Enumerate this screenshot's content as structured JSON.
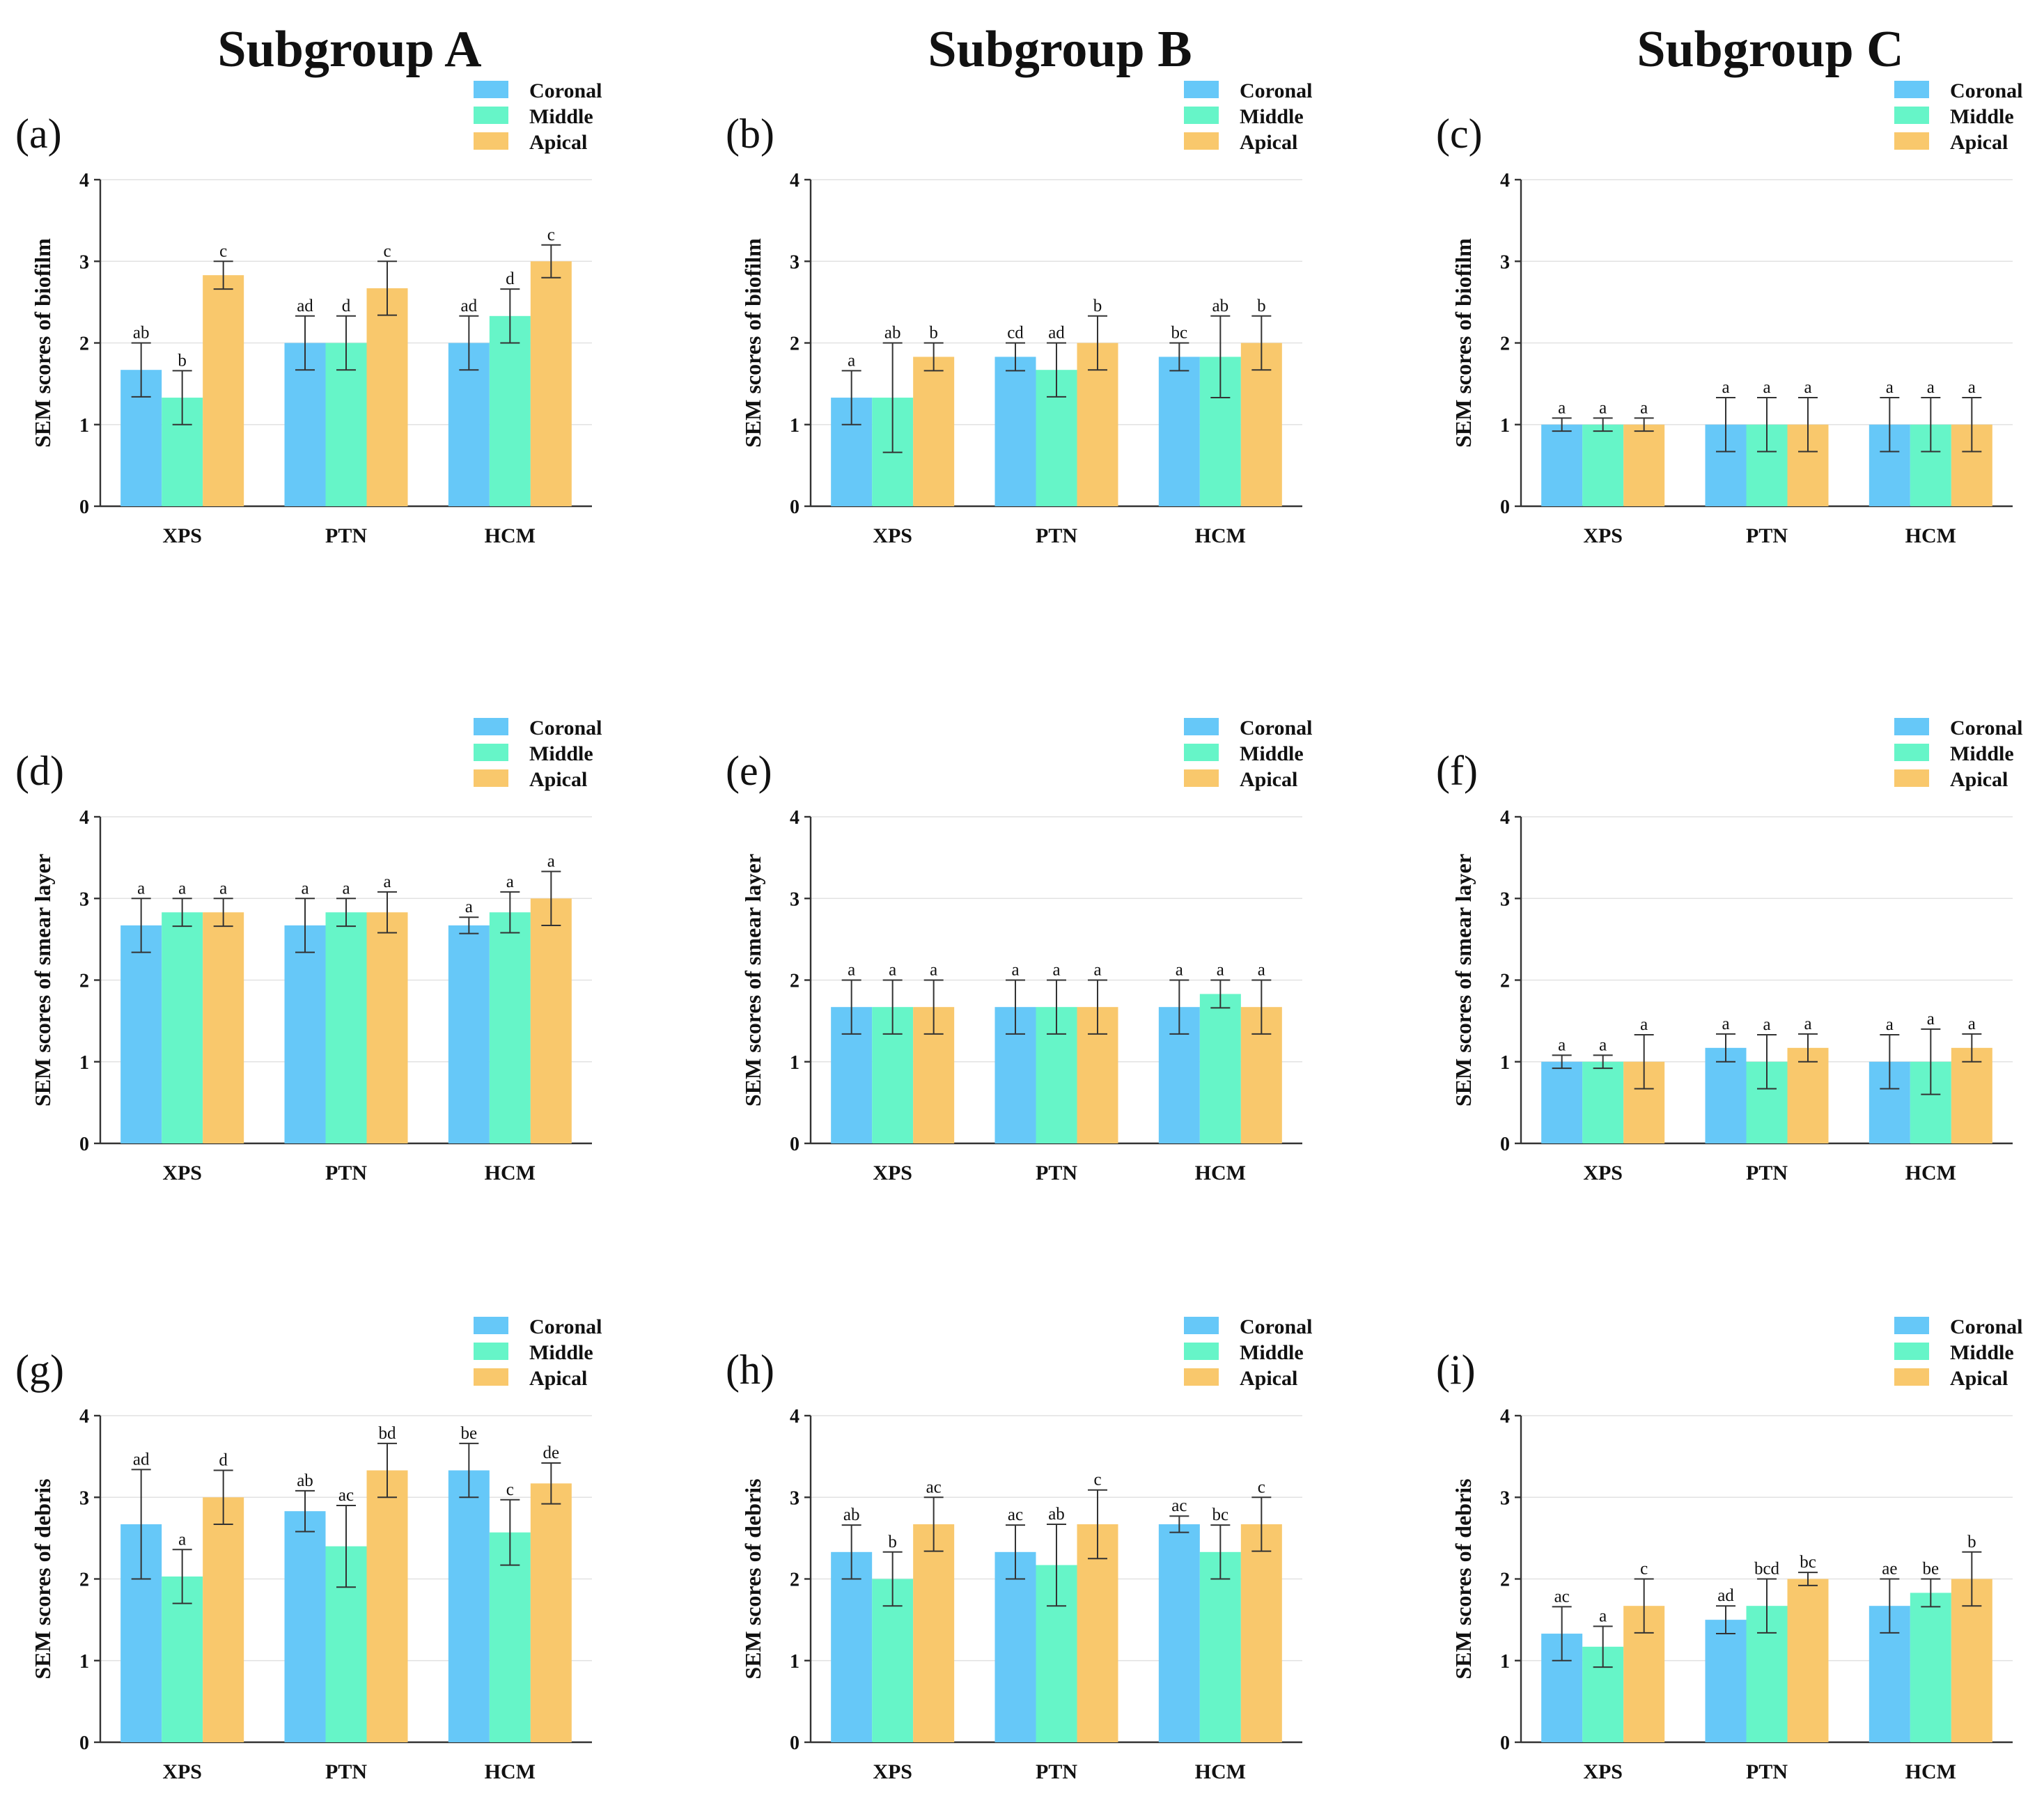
{
  "column_titles": [
    "Subgroup A",
    "Subgroup B",
    "Subgroup C"
  ],
  "legend": [
    {
      "name": "Coronal",
      "color": "#66c8f8"
    },
    {
      "name": "Middle",
      "color": "#66f5c8"
    },
    {
      "name": "Apical",
      "color": "#f9c86c"
    }
  ],
  "chart_data": [
    {
      "id": "a",
      "label": "(a)",
      "type": "bar",
      "subgroup": "Subgroup A",
      "ylabel": "SEM scores of biofilm",
      "ylim": [
        0,
        4
      ],
      "yticks": [
        0,
        1,
        2,
        3,
        4
      ],
      "grid": true,
      "categories": [
        "XPS",
        "PTN",
        "HCM"
      ],
      "series": [
        {
          "name": "Coronal",
          "values": [
            1.67,
            2.0,
            2.0
          ],
          "errors": [
            0.33,
            0.33,
            0.33
          ],
          "letters": [
            "ab",
            "ad",
            "ad"
          ]
        },
        {
          "name": "Middle",
          "values": [
            1.33,
            2.0,
            2.33
          ],
          "errors": [
            0.33,
            0.33,
            0.33
          ],
          "letters": [
            "b",
            "d",
            "d"
          ]
        },
        {
          "name": "Apical",
          "values": [
            2.83,
            2.67,
            3.0
          ],
          "errors": [
            0.17,
            0.33,
            0.2
          ],
          "letters": [
            "c",
            "c",
            "c"
          ]
        }
      ]
    },
    {
      "id": "b",
      "label": "(b)",
      "type": "bar",
      "subgroup": "Subgroup B",
      "ylabel": "SEM scores of biofilm",
      "ylim": [
        0,
        4
      ],
      "yticks": [
        0,
        1,
        2,
        3,
        4
      ],
      "grid": true,
      "categories": [
        "XPS",
        "PTN",
        "HCM"
      ],
      "series": [
        {
          "name": "Coronal",
          "values": [
            1.33,
            1.83,
            1.83
          ],
          "errors": [
            0.33,
            0.17,
            0.17
          ],
          "letters": [
            "a",
            "cd",
            "bc"
          ]
        },
        {
          "name": "Middle",
          "values": [
            1.33,
            1.67,
            1.83
          ],
          "errors": [
            0.67,
            0.33,
            0.5
          ],
          "letters": [
            "ab",
            "ad",
            "ab"
          ]
        },
        {
          "name": "Apical",
          "values": [
            1.83,
            2.0,
            2.0
          ],
          "errors": [
            0.17,
            0.33,
            0.33
          ],
          "letters": [
            "b",
            "b",
            "b"
          ]
        }
      ]
    },
    {
      "id": "c",
      "label": "(c)",
      "type": "bar",
      "subgroup": "Subgroup C",
      "ylabel": "SEM scores of biofilm",
      "ylim": [
        0,
        4
      ],
      "yticks": [
        0,
        1,
        2,
        3,
        4
      ],
      "grid": true,
      "categories": [
        "XPS",
        "PTN",
        "HCM"
      ],
      "series": [
        {
          "name": "Coronal",
          "values": [
            1.0,
            1.0,
            1.0
          ],
          "errors": [
            0.08,
            0.33,
            0.33
          ],
          "letters": [
            "a",
            "a",
            "a"
          ]
        },
        {
          "name": "Middle",
          "values": [
            1.0,
            1.0,
            1.0
          ],
          "errors": [
            0.08,
            0.33,
            0.33
          ],
          "letters": [
            "a",
            "a",
            "a"
          ]
        },
        {
          "name": "Apical",
          "values": [
            1.0,
            1.0,
            1.0
          ],
          "errors": [
            0.08,
            0.33,
            0.33
          ],
          "letters": [
            "a",
            "a",
            "a"
          ]
        }
      ]
    },
    {
      "id": "d",
      "label": "(d)",
      "type": "bar",
      "subgroup": "Subgroup A",
      "ylabel": "SEM scores of smear layer",
      "ylim": [
        0,
        4
      ],
      "yticks": [
        0,
        1,
        2,
        3,
        4
      ],
      "grid": true,
      "categories": [
        "XPS",
        "PTN",
        "HCM"
      ],
      "series": [
        {
          "name": "Coronal",
          "values": [
            2.67,
            2.67,
            2.67
          ],
          "errors": [
            0.33,
            0.33,
            0.1
          ],
          "letters": [
            "a",
            "a",
            "a"
          ]
        },
        {
          "name": "Middle",
          "values": [
            2.83,
            2.83,
            2.83
          ],
          "errors": [
            0.17,
            0.17,
            0.25
          ],
          "letters": [
            "a",
            "a",
            "a"
          ]
        },
        {
          "name": "Apical",
          "values": [
            2.83,
            2.83,
            3.0
          ],
          "errors": [
            0.17,
            0.25,
            0.33
          ],
          "letters": [
            "a",
            "a",
            "a"
          ]
        }
      ]
    },
    {
      "id": "e",
      "label": "(e)",
      "type": "bar",
      "subgroup": "Subgroup B",
      "ylabel": "SEM scores of smear layer",
      "ylim": [
        0,
        4
      ],
      "yticks": [
        0,
        1,
        2,
        3,
        4
      ],
      "grid": true,
      "categories": [
        "XPS",
        "PTN",
        "HCM"
      ],
      "series": [
        {
          "name": "Coronal",
          "values": [
            1.67,
            1.67,
            1.67
          ],
          "errors": [
            0.33,
            0.33,
            0.33
          ],
          "letters": [
            "a",
            "a",
            "a"
          ]
        },
        {
          "name": "Middle",
          "values": [
            1.67,
            1.67,
            1.83
          ],
          "errors": [
            0.33,
            0.33,
            0.17
          ],
          "letters": [
            "a",
            "a",
            "a"
          ]
        },
        {
          "name": "Apical",
          "values": [
            1.67,
            1.67,
            1.67
          ],
          "errors": [
            0.33,
            0.33,
            0.33
          ],
          "letters": [
            "a",
            "a",
            "a"
          ]
        }
      ]
    },
    {
      "id": "f",
      "label": "(f)",
      "type": "bar",
      "subgroup": "Subgroup C",
      "ylabel": "SEM scores of smear layer",
      "ylim": [
        0,
        4
      ],
      "yticks": [
        0,
        1,
        2,
        3,
        4
      ],
      "grid": true,
      "categories": [
        "XPS",
        "PTN",
        "HCM"
      ],
      "series": [
        {
          "name": "Coronal",
          "values": [
            1.0,
            1.17,
            1.0
          ],
          "errors": [
            0.08,
            0.17,
            0.33
          ],
          "letters": [
            "a",
            "a",
            "a"
          ]
        },
        {
          "name": "Middle",
          "values": [
            1.0,
            1.0,
            1.0
          ],
          "errors": [
            0.08,
            0.33,
            0.4
          ],
          "letters": [
            "a",
            "a",
            "a"
          ]
        },
        {
          "name": "Apical",
          "values": [
            1.0,
            1.17,
            1.17
          ],
          "errors": [
            0.33,
            0.17,
            0.17
          ],
          "letters": [
            "a",
            "a",
            "a"
          ]
        }
      ]
    },
    {
      "id": "g",
      "label": "(g)",
      "type": "bar",
      "subgroup": "Subgroup A",
      "ylabel": "SEM scores of debris",
      "ylim": [
        0,
        4
      ],
      "yticks": [
        0,
        1,
        2,
        3,
        4
      ],
      "grid": true,
      "categories": [
        "XPS",
        "PTN",
        "HCM"
      ],
      "series": [
        {
          "name": "Coronal",
          "values": [
            2.67,
            2.83,
            3.33
          ],
          "errors": [
            0.67,
            0.25,
            0.33
          ],
          "letters": [
            "ad",
            "ab",
            "be"
          ]
        },
        {
          "name": "Middle",
          "values": [
            2.03,
            2.4,
            2.57
          ],
          "errors": [
            0.33,
            0.5,
            0.4
          ],
          "letters": [
            "a",
            "ac",
            "c"
          ]
        },
        {
          "name": "Apical",
          "values": [
            3.0,
            3.33,
            3.17
          ],
          "errors": [
            0.33,
            0.33,
            0.25
          ],
          "letters": [
            "d",
            "bd",
            "de"
          ]
        }
      ]
    },
    {
      "id": "h",
      "label": "(h)",
      "type": "bar",
      "subgroup": "Subgroup B",
      "ylabel": "SEM scores of debris",
      "ylim": [
        0,
        4
      ],
      "yticks": [
        0,
        1,
        2,
        3,
        4
      ],
      "grid": true,
      "categories": [
        "XPS",
        "PTN",
        "HCM"
      ],
      "series": [
        {
          "name": "Coronal",
          "values": [
            2.33,
            2.33,
            2.67
          ],
          "errors": [
            0.33,
            0.33,
            0.1
          ],
          "letters": [
            "ab",
            "ac",
            "ac"
          ]
        },
        {
          "name": "Middle",
          "values": [
            2.0,
            2.17,
            2.33
          ],
          "errors": [
            0.33,
            0.5,
            0.33
          ],
          "letters": [
            "b",
            "ab",
            "bc"
          ]
        },
        {
          "name": "Apical",
          "values": [
            2.67,
            2.67,
            2.67
          ],
          "errors": [
            0.33,
            0.42,
            0.33
          ],
          "letters": [
            "ac",
            "c",
            "c"
          ]
        }
      ]
    },
    {
      "id": "i",
      "label": "(i)",
      "type": "bar",
      "subgroup": "Subgroup C",
      "ylabel": "SEM scores of debris",
      "ylim": [
        0,
        4
      ],
      "yticks": [
        0,
        1,
        2,
        3,
        4
      ],
      "grid": true,
      "categories": [
        "XPS",
        "PTN",
        "HCM"
      ],
      "series": [
        {
          "name": "Coronal",
          "values": [
            1.33,
            1.5,
            1.67
          ],
          "errors": [
            0.33,
            0.17,
            0.33
          ],
          "letters": [
            "ac",
            "ad",
            "ae"
          ]
        },
        {
          "name": "Middle",
          "values": [
            1.17,
            1.67,
            1.83
          ],
          "errors": [
            0.25,
            0.33,
            0.17
          ],
          "letters": [
            "a",
            "bcd",
            "be"
          ]
        },
        {
          "name": "Apical",
          "values": [
            1.67,
            2.0,
            2.0
          ],
          "errors": [
            0.33,
            0.08,
            0.33
          ],
          "letters": [
            "c",
            "bc",
            "b"
          ]
        }
      ]
    }
  ]
}
